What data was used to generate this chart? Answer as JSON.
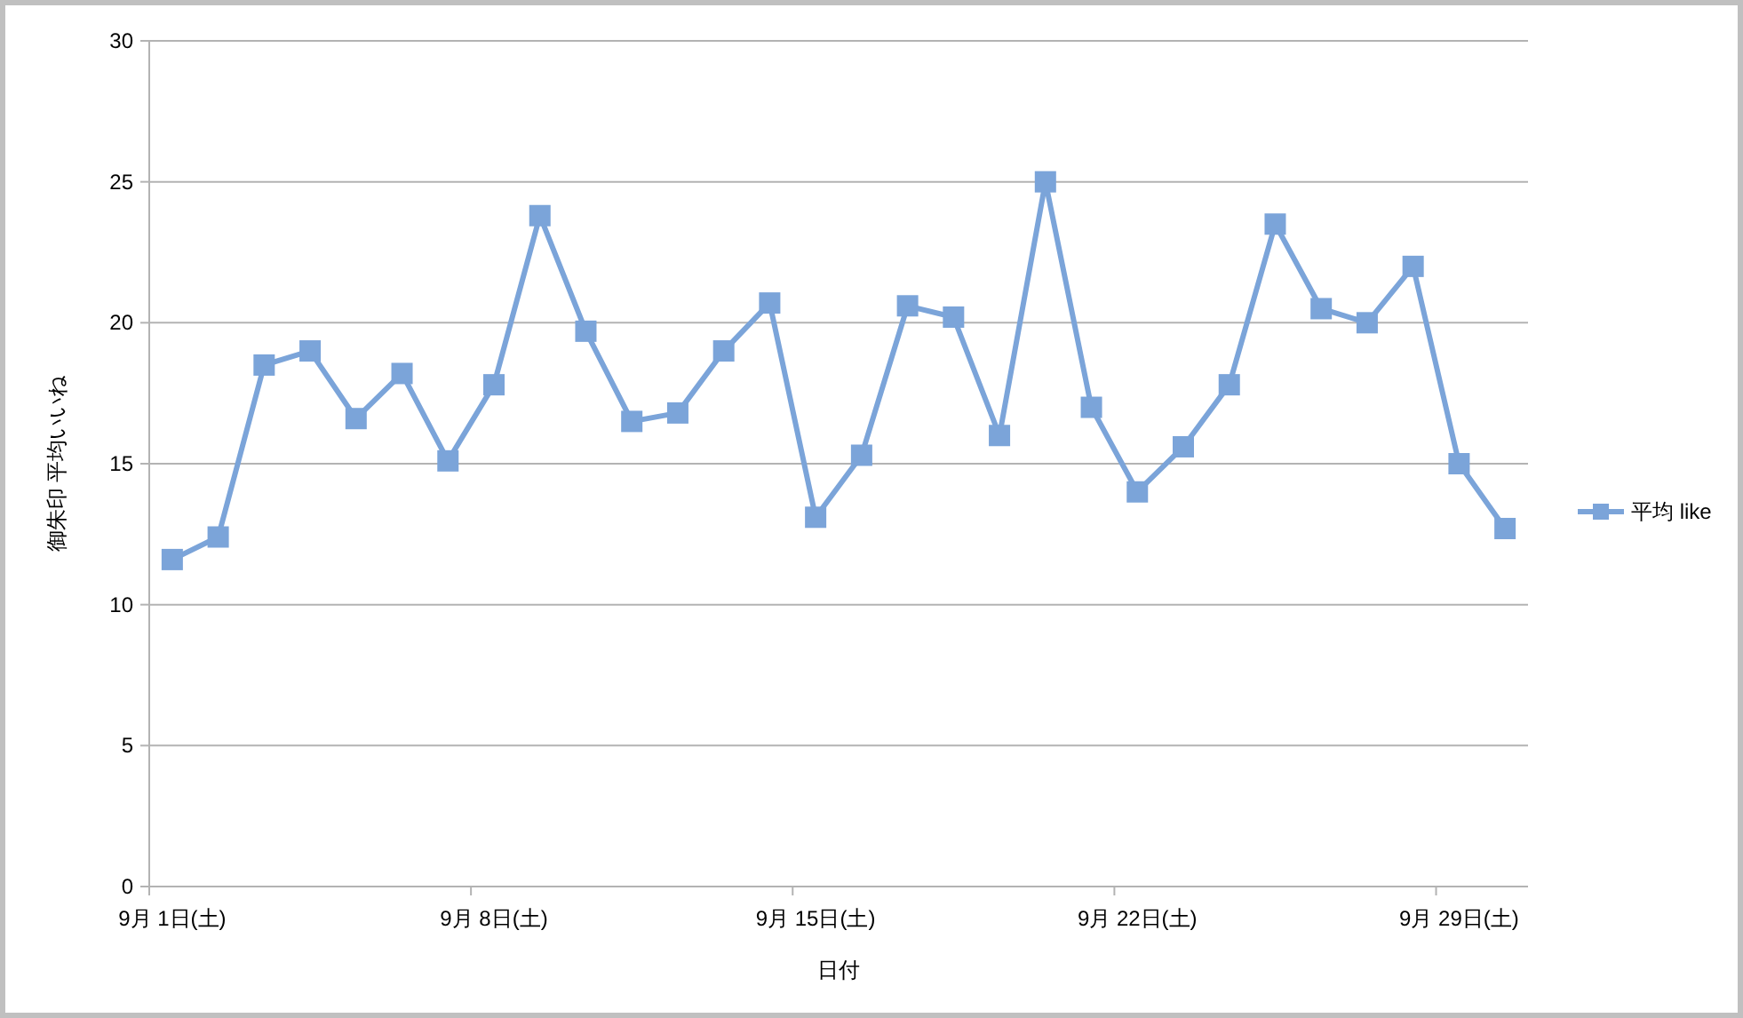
{
  "chart_data": {
    "type": "line",
    "xlabel": "日付",
    "ylabel": "御朱印 平均いいね",
    "categories": [
      "9月 1日(土)",
      null,
      null,
      null,
      null,
      null,
      null,
      "9月 8日(土)",
      null,
      null,
      null,
      null,
      null,
      null,
      "9月 15日(土)",
      null,
      null,
      null,
      null,
      null,
      null,
      "9月 22日(土)",
      null,
      null,
      null,
      null,
      null,
      null,
      "9月 29日(土)",
      null
    ],
    "series": [
      {
        "name": "平均 like",
        "color": "#7ba4d9",
        "values": [
          11.6,
          12.4,
          18.5,
          19.0,
          16.6,
          18.2,
          15.1,
          17.8,
          23.8,
          19.7,
          16.5,
          16.8,
          19.0,
          20.7,
          13.1,
          15.3,
          20.6,
          20.2,
          16.0,
          25.0,
          17.0,
          14.0,
          15.6,
          17.8,
          23.5,
          20.5,
          20.0,
          22.0,
          15.0,
          12.7
        ]
      }
    ],
    "ylim": [
      0,
      30
    ],
    "yticks": [
      0,
      5,
      10,
      15,
      20,
      25,
      30
    ],
    "grid": "y",
    "legend": "right",
    "marker": "square",
    "line_style": "solid"
  }
}
